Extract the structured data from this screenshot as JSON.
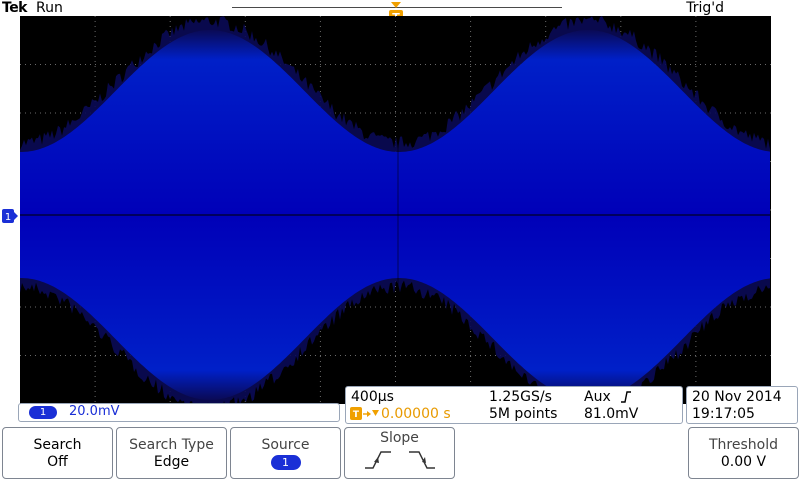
{
  "header": {
    "brand": "Tek",
    "acquisition_status": "Run",
    "trigger_status": "Trig'd",
    "trigger_marker": "T"
  },
  "channel1": {
    "marker": "1",
    "badge": "1",
    "scale": "20.0mV",
    "color": "#1a2fd6"
  },
  "timebase": {
    "horizontal_scale": "400µs",
    "sample_rate": "1.25GS/s",
    "trigger_source": "Aux",
    "trigger_slope_symbol": "rising-edge-icon",
    "trigger_marker": "T",
    "trigger_position": "0.00000 s",
    "record_length": "5M points",
    "trigger_level": "81.0mV"
  },
  "datetime": {
    "date": "20 Nov 2014",
    "time": "19:17:05"
  },
  "menu": {
    "search": {
      "label": "Search",
      "value": "Off"
    },
    "search_type": {
      "label": "Search Type",
      "value": "Edge"
    },
    "source": {
      "label": "Source",
      "value": "1"
    },
    "slope": {
      "label": "Slope"
    },
    "threshold": {
      "label": "Threshold",
      "value": "0.00 V"
    }
  },
  "colors": {
    "trace_core": "#0000d8",
    "trace_edge": "#0a0a55",
    "trigger_orange": "#f0a000",
    "grid": "#b0b0b0"
  }
}
